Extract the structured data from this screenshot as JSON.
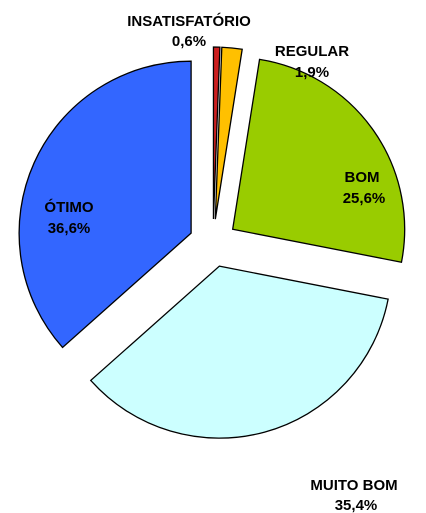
{
  "chart_data": {
    "type": "pie",
    "title": "",
    "slices": [
      {
        "label": "INSATISFATÓRIO",
        "value_text": "0,6%",
        "value": 0.6,
        "color": "#cc1f1f"
      },
      {
        "label": "REGULAR",
        "value_text": "1,9%",
        "value": 1.9,
        "color": "#ffc000"
      },
      {
        "label": "BOM",
        "value_text": "25,6%",
        "value": 25.6,
        "color": "#99cc00"
      },
      {
        "label": "MUITO BOM",
        "value_text": "35,4%",
        "value": 35.4,
        "color": "#ccffff"
      },
      {
        "label": "ÓTIMO",
        "value_text": "36,6%",
        "value": 36.6,
        "color": "#3366ff"
      }
    ],
    "exploded": true,
    "legend": "none"
  }
}
